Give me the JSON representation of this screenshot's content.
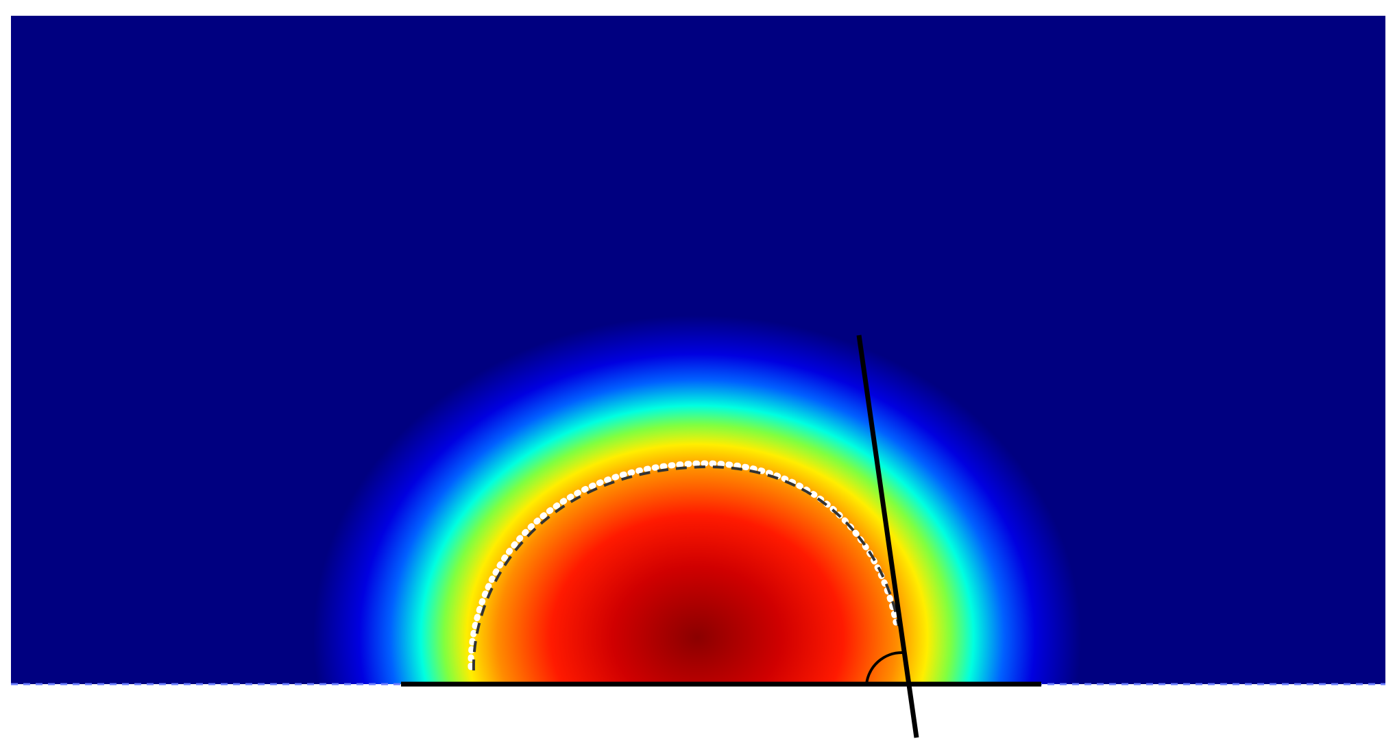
{
  "figure": {
    "colormap": "jet",
    "colors": {
      "background_field": "#000080",
      "hot_core": "#8b0000",
      "contour_dash": "#333333",
      "contour_outline": "#ffffff",
      "lines": "#000000",
      "page": "#ffffff"
    }
  }
}
